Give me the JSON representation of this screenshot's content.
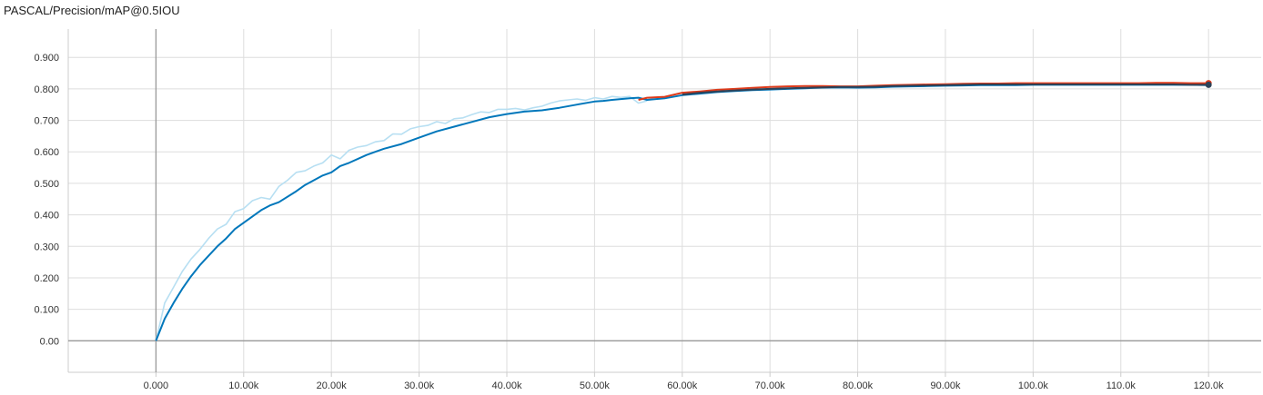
{
  "chart_data": {
    "type": "line",
    "title": "PASCAL/Precision/mAP@0.5IOU",
    "xlabel": "",
    "ylabel": "",
    "x_tick_labels": [
      "0.000",
      "10.00k",
      "20.00k",
      "30.00k",
      "40.00k",
      "50.00k",
      "60.00k",
      "70.00k",
      "80.00k",
      "90.00k",
      "100.0k",
      "110.0k",
      "120.0k"
    ],
    "x_ticks": [
      0,
      10000,
      20000,
      30000,
      40000,
      50000,
      60000,
      70000,
      80000,
      90000,
      100000,
      110000,
      120000
    ],
    "y_tick_labels": [
      "0.00",
      "0.100",
      "0.200",
      "0.300",
      "0.400",
      "0.500",
      "0.600",
      "0.700",
      "0.800",
      "0.900"
    ],
    "y_ticks": [
      0,
      0.1,
      0.2,
      0.3,
      0.4,
      0.5,
      0.6,
      0.7,
      0.8,
      0.9
    ],
    "xlim": [
      -10000,
      126000
    ],
    "ylim": [
      -0.1,
      0.99
    ],
    "grid": true,
    "legend": "none",
    "colors": {
      "raw": "#b7dff2",
      "smoothed_blue": "#0077bb",
      "smoothed_orange": "#dd3a1a",
      "dark_blue": "#2d4258",
      "grid": "#dddddd",
      "axis": "#999999"
    },
    "series": [
      {
        "role": "raw",
        "x": [
          0,
          1000,
          2000,
          3000,
          4000,
          5000,
          6000,
          7000,
          8000,
          9000,
          10000,
          11000,
          12000,
          13000,
          14000,
          15000,
          16000,
          17000,
          18000,
          19000,
          20000,
          21000,
          22000,
          23000,
          24000,
          25000,
          26000,
          27000,
          28000,
          29000,
          30000,
          31000,
          32000,
          33000,
          34000,
          35000,
          36000,
          37000,
          38000,
          39000,
          40000,
          41000,
          42000,
          43000,
          44000,
          45000,
          46000,
          47000,
          48000,
          49000,
          50000,
          51000,
          52000,
          53000,
          54000,
          55000,
          56000
        ],
        "y": [
          0.0,
          0.12,
          0.17,
          0.22,
          0.26,
          0.29,
          0.325,
          0.355,
          0.37,
          0.41,
          0.42,
          0.445,
          0.455,
          0.45,
          0.49,
          0.51,
          0.535,
          0.54,
          0.555,
          0.565,
          0.59,
          0.578,
          0.605,
          0.615,
          0.62,
          0.632,
          0.636,
          0.657,
          0.656,
          0.673,
          0.68,
          0.684,
          0.696,
          0.69,
          0.705,
          0.708,
          0.718,
          0.727,
          0.725,
          0.735,
          0.735,
          0.738,
          0.733,
          0.74,
          0.745,
          0.755,
          0.762,
          0.765,
          0.768,
          0.764,
          0.772,
          0.768,
          0.776,
          0.773,
          0.776,
          0.755,
          0.762
        ]
      },
      {
        "role": "smoothed_blue",
        "x": [
          0,
          1000,
          2000,
          3000,
          4000,
          5000,
          6000,
          7000,
          8000,
          9000,
          10000,
          12000,
          13000,
          14000,
          16000,
          17000,
          19000,
          20000,
          21000,
          22000,
          24000,
          25000,
          26000,
          28000,
          30000,
          32000,
          34000,
          36000,
          38000,
          40000,
          42000,
          44000,
          46000,
          48000,
          50000,
          51000,
          52000,
          54000,
          55000,
          56000,
          58000,
          60000,
          62000,
          64000,
          66000,
          68000,
          70000,
          72000,
          74000,
          76000,
          78000,
          80000,
          82000,
          84000,
          86000,
          88000,
          90000,
          92000,
          94000,
          96000,
          98000,
          100000,
          102000,
          104000,
          106000,
          108000,
          110000,
          112000,
          114000,
          116000,
          118000,
          120000
        ],
        "y": [
          0.0,
          0.07,
          0.12,
          0.165,
          0.205,
          0.24,
          0.27,
          0.3,
          0.325,
          0.355,
          0.375,
          0.415,
          0.43,
          0.44,
          0.475,
          0.495,
          0.525,
          0.535,
          0.555,
          0.565,
          0.59,
          0.6,
          0.61,
          0.625,
          0.645,
          0.665,
          0.68,
          0.695,
          0.71,
          0.72,
          0.728,
          0.732,
          0.74,
          0.75,
          0.76,
          0.762,
          0.765,
          0.77,
          0.772,
          0.765,
          0.77,
          0.78,
          0.785,
          0.79,
          0.793,
          0.796,
          0.798,
          0.8,
          0.802,
          0.804,
          0.805,
          0.804,
          0.805,
          0.807,
          0.808,
          0.809,
          0.81,
          0.811,
          0.812,
          0.812,
          0.812,
          0.813,
          0.813,
          0.813,
          0.813,
          0.813,
          0.813,
          0.813,
          0.813,
          0.813,
          0.813,
          0.812
        ]
      },
      {
        "role": "smoothed_orange",
        "x": [
          55000,
          56000,
          58000,
          60000,
          62000,
          64000,
          66000,
          68000,
          70000,
          72000,
          74000,
          76000,
          78000,
          80000,
          82000,
          84000,
          86000,
          88000,
          90000,
          92000,
          94000,
          96000,
          98000,
          100000,
          102000,
          104000,
          106000,
          108000,
          110000,
          112000,
          114000,
          116000,
          118000,
          120000
        ],
        "y": [
          0.765,
          0.772,
          0.775,
          0.788,
          0.792,
          0.797,
          0.8,
          0.803,
          0.806,
          0.808,
          0.809,
          0.809,
          0.808,
          0.808,
          0.81,
          0.812,
          0.813,
          0.814,
          0.815,
          0.816,
          0.817,
          0.817,
          0.818,
          0.818,
          0.818,
          0.818,
          0.818,
          0.818,
          0.818,
          0.818,
          0.819,
          0.819,
          0.818,
          0.818
        ]
      },
      {
        "role": "dark_blue",
        "x": [
          60000,
          62000,
          64000,
          66000,
          68000,
          70000,
          72000,
          74000,
          76000,
          78000,
          80000,
          82000,
          84000,
          86000,
          88000,
          90000,
          92000,
          94000,
          96000,
          98000,
          100000,
          102000,
          104000,
          106000,
          108000,
          110000,
          112000,
          114000,
          116000,
          118000,
          120000
        ],
        "y": [
          0.782,
          0.788,
          0.792,
          0.795,
          0.798,
          0.8,
          0.802,
          0.803,
          0.805,
          0.806,
          0.806,
          0.807,
          0.809,
          0.81,
          0.811,
          0.812,
          0.813,
          0.814,
          0.814,
          0.814,
          0.814,
          0.814,
          0.814,
          0.814,
          0.814,
          0.814,
          0.814,
          0.814,
          0.814,
          0.813,
          0.813
        ]
      }
    ],
    "end_markers": [
      {
        "role": "smoothed_orange",
        "x": 120000,
        "y": 0.818
      },
      {
        "role": "dark_blue",
        "x": 120000,
        "y": 0.813
      }
    ]
  }
}
